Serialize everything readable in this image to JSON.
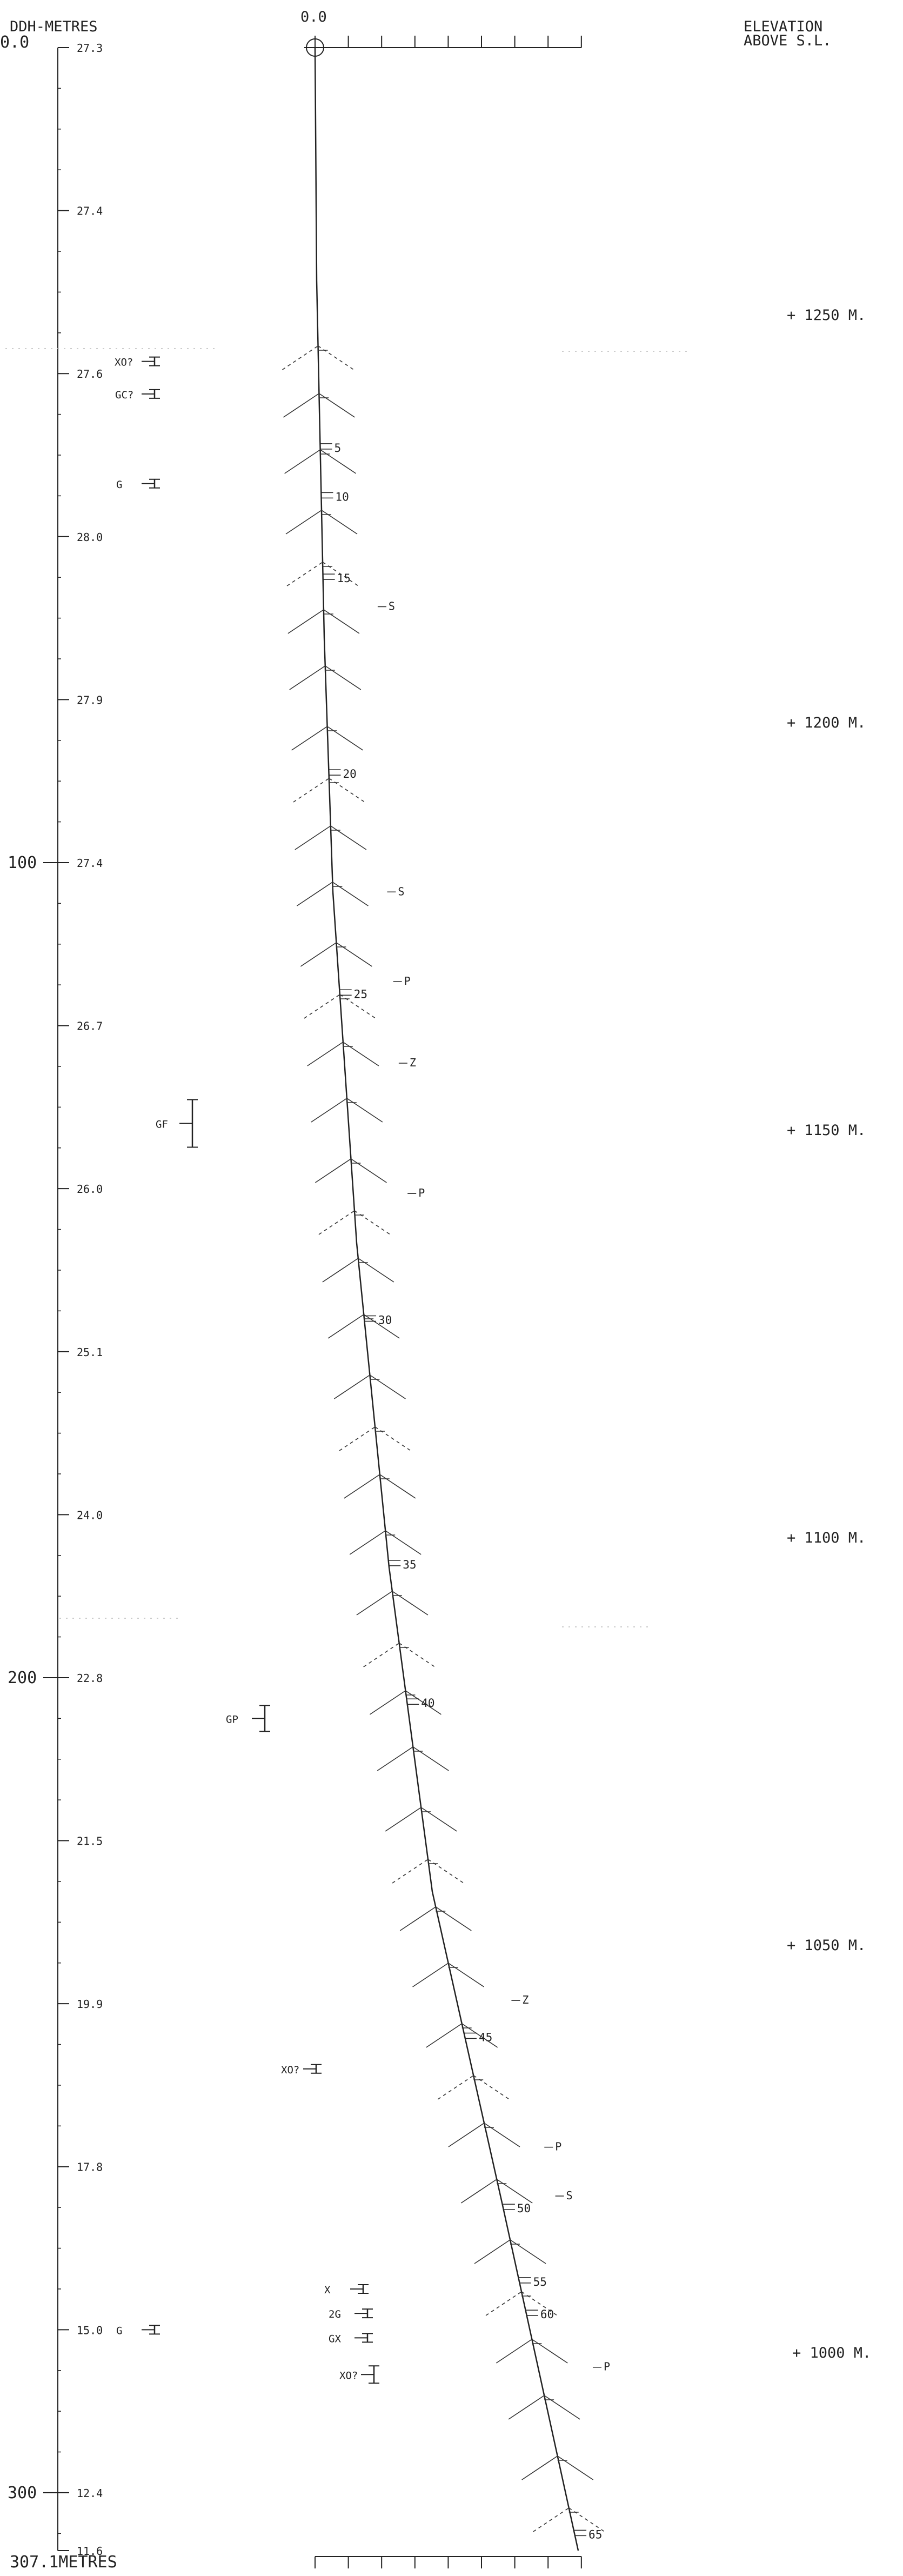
{
  "header": {
    "depth_title": "DDH-METRES",
    "depth_top": "0.0",
    "collar_offset": "0.0",
    "elevation_title_1": "ELEVATION",
    "elevation_title_2": "ABOVE S.L.",
    "depth_bottom": "307.1METRES"
  },
  "depth_axis": {
    "labels": [
      {
        "depth": 0,
        "text": ""
      },
      {
        "depth": 100,
        "text": "100"
      },
      {
        "depth": 200,
        "text": "200"
      },
      {
        "depth": 300,
        "text": "300"
      }
    ],
    "dip_values": [
      {
        "depth": 0,
        "text": "27.3"
      },
      {
        "depth": 20,
        "text": "27.4"
      },
      {
        "depth": 40,
        "text": "27.6"
      },
      {
        "depth": 60,
        "text": "28.0"
      },
      {
        "depth": 80,
        "text": "27.9"
      },
      {
        "depth": 100,
        "text": "27.4"
      },
      {
        "depth": 120,
        "text": "26.7"
      },
      {
        "depth": 140,
        "text": "26.0"
      },
      {
        "depth": 160,
        "text": "25.1"
      },
      {
        "depth": 180,
        "text": "24.0"
      },
      {
        "depth": 200,
        "text": "22.8"
      },
      {
        "depth": 220,
        "text": "21.5"
      },
      {
        "depth": 240,
        "text": "19.9"
      },
      {
        "depth": 260,
        "text": "17.8"
      },
      {
        "depth": 280,
        "text": "15.0"
      },
      {
        "depth": 300,
        "text": "12.4"
      },
      {
        "depth": 307.1,
        "text": "11.6"
      }
    ]
  },
  "elevations": [
    {
      "text": "+ 1250  M.",
      "elevation": 1250
    },
    {
      "text": "+ 1200  M.",
      "elevation": 1200
    },
    {
      "text": "+ 1150  M.",
      "elevation": 1150
    },
    {
      "text": "+ 1100  M.",
      "elevation": 1100
    },
    {
      "text": "+ 1050  M.",
      "elevation": 1050
    },
    {
      "text": "+ 1000 M.",
      "elevation": 1000
    }
  ],
  "hole_markers": [
    {
      "text": "5",
      "depth": 49
    },
    {
      "text": "10",
      "depth": 55
    },
    {
      "text": "15",
      "depth": 65
    },
    {
      "text": "20",
      "depth": 89
    },
    {
      "text": "25",
      "depth": 116
    },
    {
      "text": "30",
      "depth": 156
    },
    {
      "text": "35",
      "depth": 186
    },
    {
      "text": "40",
      "depth": 203
    },
    {
      "text": "45",
      "depth": 244
    },
    {
      "text": "50",
      "depth": 265
    },
    {
      "text": "55",
      "depth": 274
    },
    {
      "text": "60",
      "depth": 278
    },
    {
      "text": "65",
      "depth": 305
    }
  ],
  "hole_annotations": [
    {
      "text": "S",
      "depth": 69
    },
    {
      "text": "S",
      "depth": 104
    },
    {
      "text": "P",
      "depth": 115
    },
    {
      "text": "Z",
      "depth": 125
    },
    {
      "text": "P",
      "depth": 141
    },
    {
      "text": "Z",
      "depth": 240
    },
    {
      "text": "P",
      "depth": 258
    },
    {
      "text": "S",
      "depth": 264
    },
    {
      "text": "P",
      "depth": 285
    }
  ],
  "left_markers": [
    {
      "text": "XO?",
      "depth": 38.5
    },
    {
      "text": "GC?",
      "depth": 42.5
    },
    {
      "text": "G",
      "depth": 53.5
    },
    {
      "text": "GF",
      "depth": 132
    },
    {
      "text": "GP",
      "depth": 205
    },
    {
      "text": "XO?",
      "depth": 248
    },
    {
      "text": "X",
      "depth": 275
    },
    {
      "text": "2G",
      "depth": 278
    },
    {
      "text": "G",
      "depth": 280
    },
    {
      "text": "GX",
      "depth": 281
    },
    {
      "text": "XO?",
      "depth": 285.5
    }
  ]
}
